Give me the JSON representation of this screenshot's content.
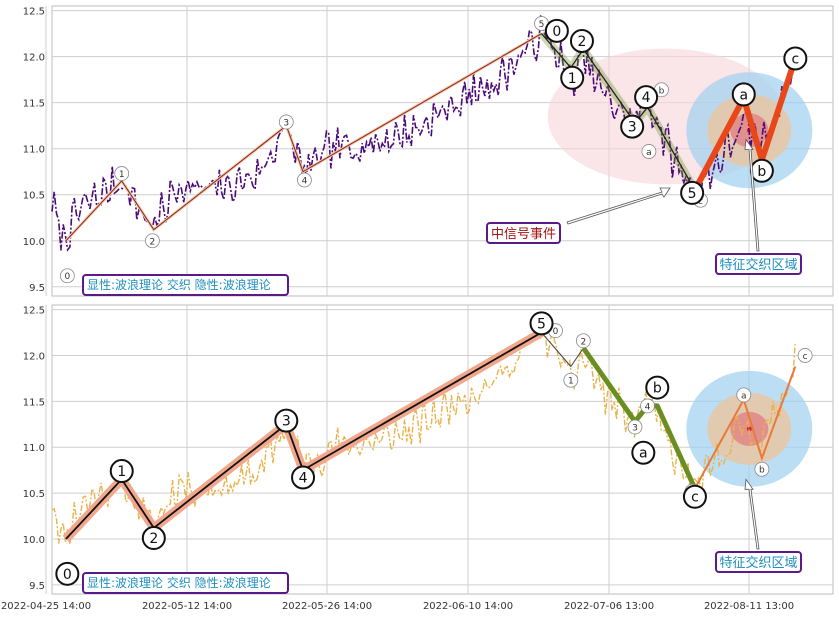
{
  "chart_data": {
    "type": "line",
    "x_ticks": [
      "2022-04-25 14:00",
      "2022-05-12 14:00",
      "2022-05-26 14:00",
      "2022-06-10 14:00",
      "2022-07-06 13:00",
      "2022-08-11 13:00"
    ],
    "colors": {
      "grid": "#cfcfcf",
      "panel_border": "#bdbdbd",
      "top_price": "#4b0a7a",
      "bottom_price": "#e8b34a",
      "wave_thin": "#8b2500",
      "wave_thick_bottom": "#f1a78c",
      "green": "#6b8e23",
      "orange_red": "#e8471a",
      "box_border": "#5b1a8a",
      "box_text": "#1f8fbf",
      "signal_text": "#a01515",
      "blue_zone": "#9fd0f0",
      "tan_zone": "#e6c8a8",
      "red_zone": "#e08a8a",
      "pink_zone": "#f6d6da"
    },
    "panels": [
      {
        "name": "top",
        "ylim": [
          9.4,
          12.55
        ],
        "yticks": [
          9.5,
          10.0,
          10.5,
          11.0,
          11.5,
          12.0,
          12.5
        ],
        "label_box": "显性:波浪理论 交织 隐性:波浪理论",
        "annotations": [
          {
            "text": "中信号事件",
            "kind": "signal"
          },
          {
            "text": "特征交织区域",
            "kind": "region"
          }
        ],
        "small_labels": [
          {
            "text": "0",
            "x": 11,
            "y": 9.62
          },
          {
            "text": "1",
            "x": 50,
            "y": 10.73
          },
          {
            "text": "2",
            "x": 72,
            "y": 10.0
          },
          {
            "text": "3",
            "x": 168,
            "y": 11.29
          },
          {
            "text": "4",
            "x": 181,
            "y": 10.66
          },
          {
            "text": "5",
            "x": 351,
            "y": 12.36
          },
          {
            "text": "0",
            "x": 361,
            "y": 12.28
          },
          {
            "text": "b",
            "x": 437,
            "y": 11.64
          },
          {
            "text": "a",
            "x": 428,
            "y": 10.97
          },
          {
            "text": "c",
            "x": 465,
            "y": 10.44
          },
          {
            "text": "5",
            "x": 462,
            "y": 10.51
          }
        ],
        "big_labels": [
          {
            "text": "0",
            "x": 362,
            "y": 12.28
          },
          {
            "text": "1",
            "x": 373,
            "y": 11.77
          },
          {
            "text": "2",
            "x": 380,
            "y": 12.17
          },
          {
            "text": "3",
            "x": 416,
            "y": 11.24
          },
          {
            "text": "4",
            "x": 426,
            "y": 11.56
          },
          {
            "text": "5",
            "x": 459,
            "y": 10.52
          },
          {
            "text": "a",
            "x": 496,
            "y": 11.59
          },
          {
            "text": "b",
            "x": 509,
            "y": 10.76
          },
          {
            "text": "c",
            "x": 533,
            "y": 11.98
          }
        ]
      },
      {
        "name": "bottom",
        "ylim": [
          9.4,
          12.55
        ],
        "yticks": [
          9.5,
          10.0,
          10.5,
          11.0,
          11.5,
          12.0,
          12.5
        ],
        "label_box": "显性:波浪理论 交织 隐性:波浪理论",
        "annotations": [
          {
            "text": "特征交织区域",
            "kind": "region"
          }
        ],
        "small_labels": [
          {
            "text": "0",
            "x": 361,
            "y": 12.27
          },
          {
            "text": "2",
            "x": 381,
            "y": 12.16
          },
          {
            "text": "1",
            "x": 372,
            "y": 11.73
          },
          {
            "text": "4",
            "x": 427,
            "y": 11.45
          },
          {
            "text": "3",
            "x": 418,
            "y": 11.22
          },
          {
            "text": "a",
            "x": 496,
            "y": 11.57
          },
          {
            "text": "b",
            "x": 509,
            "y": 10.76
          },
          {
            "text": "c",
            "x": 540,
            "y": 12.0
          },
          {
            "text": "5",
            "x": 459,
            "y": 10.52
          }
        ],
        "big_labels": [
          {
            "text": "0",
            "x": 11,
            "y": 9.62
          },
          {
            "text": "1",
            "x": 50,
            "y": 10.74
          },
          {
            "text": "2",
            "x": 73,
            "y": 10.01
          },
          {
            "text": "3",
            "x": 168,
            "y": 11.29
          },
          {
            "text": "4",
            "x": 180,
            "y": 10.67
          },
          {
            "text": "5",
            "x": 351,
            "y": 12.35
          },
          {
            "text": "a",
            "x": 424,
            "y": 10.94
          },
          {
            "text": "b",
            "x": 434,
            "y": 11.65
          },
          {
            "text": "c",
            "x": 461,
            "y": 10.46
          }
        ]
      }
    ],
    "wave_main": {
      "x": [
        10,
        50,
        73,
        168,
        180,
        351
      ],
      "y": [
        10.0,
        10.65,
        10.12,
        11.25,
        10.75,
        12.25
      ]
    },
    "wave_green": {
      "x": [
        351,
        372,
        381,
        418,
        427,
        461
      ],
      "y": [
        12.25,
        11.88,
        12.08,
        11.28,
        11.45,
        10.55
      ]
    },
    "wave_abc_top": {
      "x": [
        461,
        496,
        509,
        533
      ],
      "y": [
        10.55,
        11.55,
        10.88,
        11.98
      ]
    },
    "wave_abc_bottom": {
      "x": [
        461,
        496,
        509,
        533
      ],
      "y": [
        10.55,
        11.52,
        10.88,
        11.88
      ]
    },
    "price_anchors": {
      "x": [
        0,
        8,
        20,
        35,
        50,
        62,
        73,
        90,
        110,
        130,
        150,
        168,
        180,
        200,
        230,
        260,
        290,
        320,
        351,
        362,
        372,
        381,
        395,
        418,
        427,
        445,
        461,
        475,
        496,
        509,
        520,
        533
      ],
      "y": [
        10.4,
        10.0,
        10.35,
        10.5,
        10.65,
        10.35,
        10.15,
        10.6,
        10.55,
        10.6,
        10.75,
        11.25,
        10.75,
        11.0,
        11.05,
        11.2,
        11.5,
        11.75,
        12.25,
        12.05,
        11.7,
        12.0,
        11.6,
        11.25,
        11.55,
        10.9,
        10.55,
        10.8,
        11.25,
        11.05,
        11.45,
        11.9
      ]
    }
  }
}
